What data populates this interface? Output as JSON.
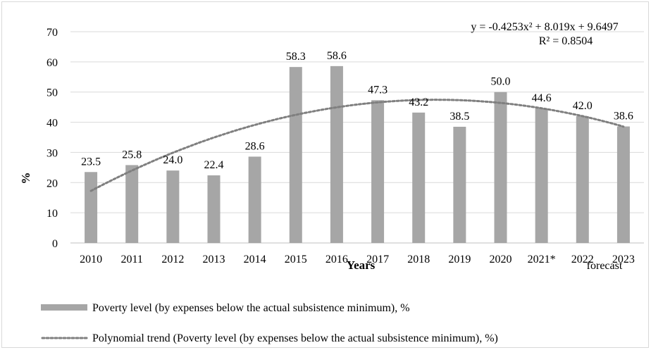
{
  "chart_data": {
    "type": "bar",
    "categories": [
      "2010",
      "2011",
      "2012",
      "2013",
      "2014",
      "2015",
      "2016",
      "2017",
      "2018",
      "2019",
      "2020",
      "2021*",
      "2022",
      "2023"
    ],
    "values": [
      23.5,
      25.8,
      24.0,
      22.4,
      28.6,
      58.3,
      58.6,
      47.3,
      43.2,
      38.5,
      50.0,
      44.6,
      42.0,
      38.6
    ],
    "value_labels": [
      "23.5",
      "25.8",
      "24.0",
      "22.4",
      "28.6",
      "58.3",
      "58.6",
      "47.3",
      "43.2",
      "38.5",
      "50.0",
      "44.6",
      "42.0",
      "38.6"
    ],
    "xlabel": "Years",
    "ylabel": "%",
    "ylim": [
      0,
      70
    ],
    "yticks": [
      "0",
      "10",
      "20",
      "30",
      "40",
      "50",
      "60",
      "70"
    ],
    "grid": true,
    "legend_position": "bottom",
    "bar_color": "#a6a6a6",
    "trend_color": "#7f7f7f",
    "forecast_note": "forecast",
    "trendline": {
      "type": "polynomial",
      "coefficients": [
        -0.4253,
        8.019,
        9.6497
      ],
      "equation": "y = -0.4253x² + 8.019x + 9.6497",
      "r_squared": "R² = 0.8504"
    },
    "legend": [
      "Poverty level (by expenses below the actual subsistence minimum), %",
      "Polynomial trend (Poverty level (by expenses below the actual subsistence minimum), %)"
    ]
  }
}
